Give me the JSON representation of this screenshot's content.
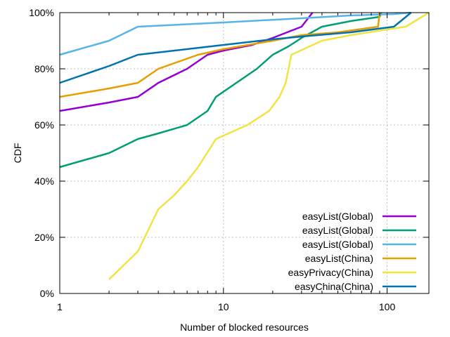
{
  "chart_data": {
    "type": "line",
    "title": "",
    "xlabel": "Number of blocked resources",
    "ylabel": "CDF",
    "xscale": "log",
    "xlim": [
      1,
      180
    ],
    "ylim": [
      0,
      100
    ],
    "x_ticks": [
      1,
      10,
      100
    ],
    "x_tick_labels": [
      "1",
      "10",
      "100"
    ],
    "y_ticks": [
      0,
      20,
      40,
      60,
      80,
      100
    ],
    "y_tick_labels": [
      "0%",
      "20%",
      "40%",
      "60%",
      "80%",
      "100%"
    ],
    "grid": "dotted",
    "legend_position": "bottom-right",
    "series": [
      {
        "name": "easyList(Global)",
        "color": "#9400d3",
        "points": [
          [
            1,
            65
          ],
          [
            2,
            68
          ],
          [
            3,
            70
          ],
          [
            4,
            75
          ],
          [
            6,
            80
          ],
          [
            8,
            85
          ],
          [
            10,
            86.5
          ],
          [
            15,
            88.5
          ],
          [
            20,
            91
          ],
          [
            30,
            95
          ],
          [
            35,
            100
          ]
        ]
      },
      {
        "name": "easyList(Global)",
        "color": "#009e73",
        "points": [
          [
            1,
            45
          ],
          [
            2,
            50
          ],
          [
            3,
            55
          ],
          [
            4,
            57
          ],
          [
            6,
            60
          ],
          [
            8,
            65
          ],
          [
            9,
            70
          ],
          [
            16,
            80
          ],
          [
            20,
            85
          ],
          [
            25,
            88
          ],
          [
            30,
            91
          ],
          [
            40,
            95
          ],
          [
            60,
            97
          ],
          [
            90,
            98.5
          ],
          [
            92,
            100
          ]
        ]
      },
      {
        "name": "easyList(Global)",
        "color": "#56b4e9",
        "points": [
          [
            1,
            85
          ],
          [
            2,
            90
          ],
          [
            3,
            95
          ],
          [
            10,
            96.5
          ],
          [
            30,
            98
          ],
          [
            60,
            99
          ],
          [
            110,
            99.5
          ],
          [
            140,
            100
          ]
        ]
      },
      {
        "name": "easyList(China)",
        "color": "#e69f00",
        "points": [
          [
            1,
            70
          ],
          [
            2,
            73
          ],
          [
            3,
            75
          ],
          [
            4,
            80
          ],
          [
            7,
            85
          ],
          [
            10,
            87
          ],
          [
            20,
            90
          ],
          [
            30,
            92
          ],
          [
            50,
            93
          ],
          [
            88,
            95
          ],
          [
            90,
            100
          ]
        ]
      },
      {
        "name": "easyPrivacy(China)",
        "color": "#f0e442",
        "points": [
          [
            2,
            5
          ],
          [
            3,
            15
          ],
          [
            4,
            30
          ],
          [
            5,
            35
          ],
          [
            6,
            40
          ],
          [
            7,
            45
          ],
          [
            9,
            55
          ],
          [
            14,
            60
          ],
          [
            19,
            65
          ],
          [
            22,
            70
          ],
          [
            24,
            75
          ],
          [
            25,
            80
          ],
          [
            26,
            85
          ],
          [
            40,
            90
          ],
          [
            60,
            92
          ],
          [
            100,
            94
          ],
          [
            130,
            95
          ],
          [
            180,
            100
          ]
        ]
      },
      {
        "name": "easyChina(China)",
        "color": "#0072b2",
        "points": [
          [
            1,
            75
          ],
          [
            2,
            81
          ],
          [
            3,
            85
          ],
          [
            10,
            88.5
          ],
          [
            20,
            90.5
          ],
          [
            30,
            91.5
          ],
          [
            60,
            93
          ],
          [
            110,
            95
          ],
          [
            140,
            100
          ]
        ]
      }
    ]
  }
}
